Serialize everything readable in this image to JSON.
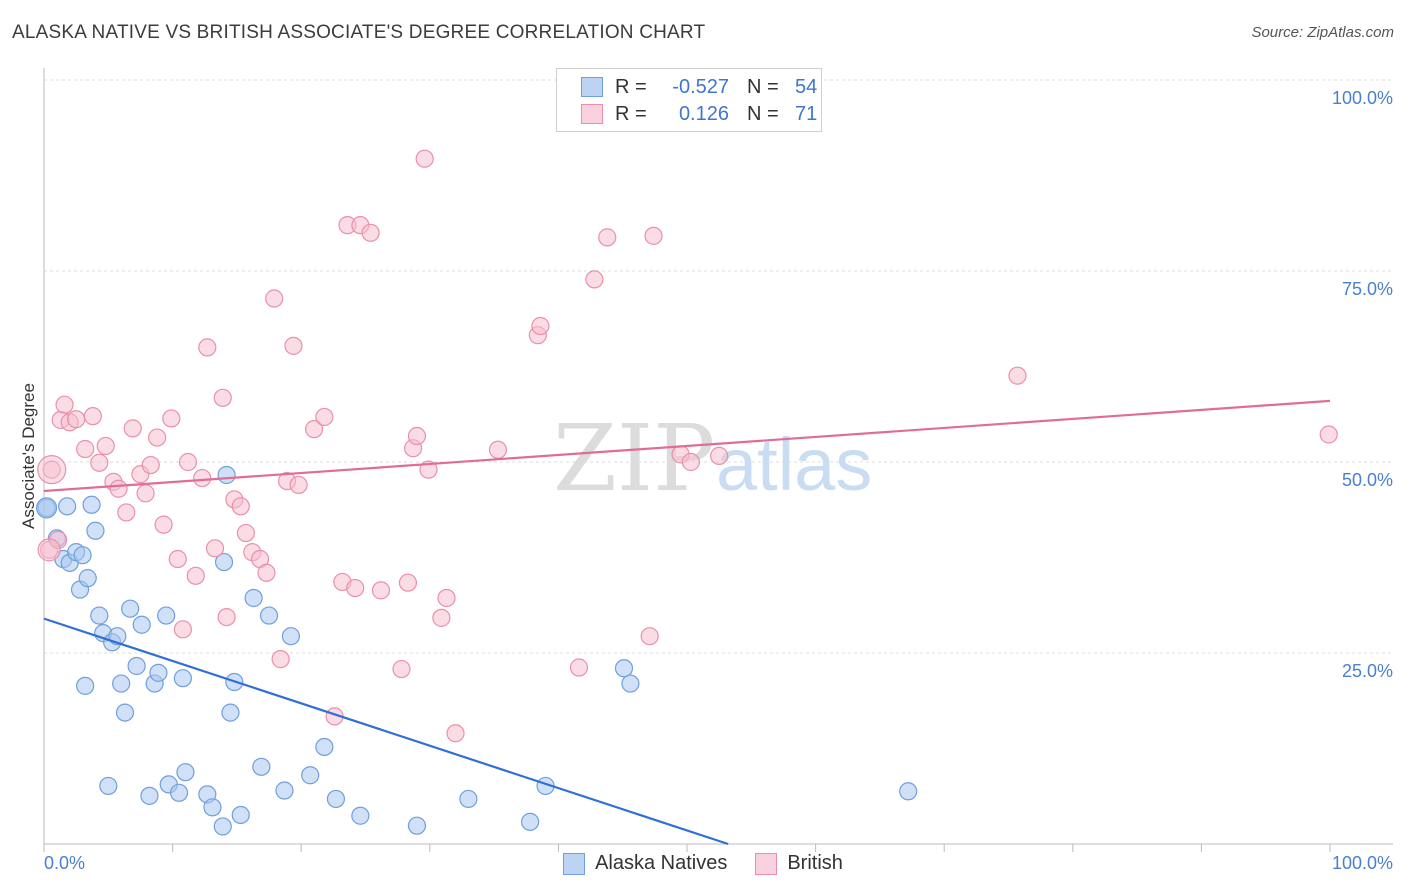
{
  "title": "ALASKA NATIVE VS BRITISH ASSOCIATE'S DEGREE CORRELATION CHART",
  "source": "Source: ZipAtlas.com",
  "watermark": {
    "zip": "ZIP",
    "atlas": "atlas"
  },
  "legend": {
    "r_label": "R =",
    "n_label": "N =",
    "rows": [
      {
        "r": "-0.527",
        "n": "54"
      },
      {
        "r": "0.126",
        "n": "71"
      }
    ]
  },
  "chart_data": {
    "type": "scatter",
    "title": "ALASKA NATIVE VS BRITISH ASSOCIATE'S DEGREE CORRELATION CHART",
    "xlabel": "",
    "ylabel": "Associate's Degree",
    "xlim": [
      0,
      100
    ],
    "ylim": [
      0,
      100
    ],
    "x_tick_labels": [
      "0.0%",
      "100.0%"
    ],
    "y_tick_labels": [
      "100.0%",
      "75.0%",
      "50.0%",
      "25.0%"
    ],
    "y_tick_values": [
      100,
      75,
      50,
      25
    ],
    "colors": {
      "alaska": "#a9c6ef",
      "alaska_edge": "#6f9fdd",
      "alaska_line": "#2f6fd6",
      "british": "#f6bfd0",
      "british_edge": "#eb8fac",
      "british_line": "#e06d97"
    },
    "series": [
      {
        "name": "Alaska Natives",
        "r": -0.527,
        "n": 54,
        "trend": {
          "x0": 0,
          "y0": 29.5,
          "x1": 53.2,
          "y1": 0
        },
        "points": [
          [
            0.2,
            44.0
          ],
          [
            1.0,
            40.0
          ],
          [
            1.5,
            37.3
          ],
          [
            2.0,
            36.8
          ],
          [
            1.8,
            44.2
          ],
          [
            2.5,
            38.2
          ],
          [
            2.8,
            33.3
          ],
          [
            3.0,
            37.8
          ],
          [
            3.4,
            34.8
          ],
          [
            3.7,
            44.4
          ],
          [
            4.0,
            41.0
          ],
          [
            4.3,
            29.9
          ],
          [
            4.6,
            27.6
          ],
          [
            5.0,
            7.6
          ],
          [
            5.3,
            26.4
          ],
          [
            5.7,
            27.2
          ],
          [
            6.0,
            21.0
          ],
          [
            6.3,
            17.2
          ],
          [
            6.7,
            30.8
          ],
          [
            7.2,
            23.3
          ],
          [
            7.6,
            28.7
          ],
          [
            8.2,
            6.3
          ],
          [
            8.6,
            21.0
          ],
          [
            8.9,
            22.4
          ],
          [
            9.5,
            29.9
          ],
          [
            9.7,
            7.8
          ],
          [
            10.5,
            6.7
          ],
          [
            10.8,
            21.7
          ],
          [
            11.0,
            9.4
          ],
          [
            12.7,
            6.5
          ],
          [
            13.1,
            4.8
          ],
          [
            13.9,
            2.3
          ],
          [
            14.0,
            36.9
          ],
          [
            14.2,
            48.3
          ],
          [
            14.5,
            17.2
          ],
          [
            14.8,
            21.2
          ],
          [
            15.3,
            3.8
          ],
          [
            16.3,
            32.2
          ],
          [
            16.9,
            10.1
          ],
          [
            17.5,
            29.9
          ],
          [
            18.7,
            7.0
          ],
          [
            19.2,
            27.2
          ],
          [
            20.7,
            9.0
          ],
          [
            21.8,
            12.7
          ],
          [
            22.7,
            5.9
          ],
          [
            24.6,
            3.7
          ],
          [
            29.0,
            2.4
          ],
          [
            33.0,
            5.9
          ],
          [
            37.8,
            2.9
          ],
          [
            39.0,
            7.6
          ],
          [
            45.1,
            23.0
          ],
          [
            45.6,
            21.0
          ],
          [
            67.2,
            6.9
          ],
          [
            3.2,
            20.7
          ]
        ]
      },
      {
        "name": "British",
        "r": 0.126,
        "n": 71,
        "trend": {
          "x0": 0,
          "y0": 46.2,
          "x1": 100,
          "y1": 58.0
        },
        "points": [
          [
            0.4,
            38.5
          ],
          [
            0.6,
            49.0
          ],
          [
            1.1,
            39.8
          ],
          [
            1.3,
            55.5
          ],
          [
            1.6,
            57.5
          ],
          [
            2.0,
            55.2
          ],
          [
            2.5,
            55.6
          ],
          [
            3.2,
            51.7
          ],
          [
            3.8,
            56.0
          ],
          [
            4.3,
            49.9
          ],
          [
            4.8,
            52.1
          ],
          [
            5.4,
            47.4
          ],
          [
            5.8,
            46.5
          ],
          [
            6.4,
            43.4
          ],
          [
            6.9,
            54.4
          ],
          [
            7.5,
            48.4
          ],
          [
            7.9,
            45.9
          ],
          [
            8.3,
            49.6
          ],
          [
            8.8,
            53.2
          ],
          [
            9.3,
            41.8
          ],
          [
            9.9,
            55.7
          ],
          [
            10.4,
            37.3
          ],
          [
            10.8,
            28.1
          ],
          [
            11.2,
            50.0
          ],
          [
            11.8,
            35.1
          ],
          [
            12.3,
            47.9
          ],
          [
            12.7,
            65.0
          ],
          [
            13.3,
            38.7
          ],
          [
            13.9,
            58.4
          ],
          [
            14.2,
            29.7
          ],
          [
            14.8,
            45.1
          ],
          [
            15.3,
            44.2
          ],
          [
            15.7,
            40.7
          ],
          [
            16.2,
            38.2
          ],
          [
            16.8,
            37.3
          ],
          [
            17.3,
            35.5
          ],
          [
            17.9,
            71.4
          ],
          [
            18.4,
            24.2
          ],
          [
            18.9,
            47.5
          ],
          [
            19.4,
            65.2
          ],
          [
            19.8,
            47.0
          ],
          [
            21.0,
            54.3
          ],
          [
            21.8,
            55.9
          ],
          [
            22.6,
            16.7
          ],
          [
            23.2,
            34.3
          ],
          [
            23.6,
            81.0
          ],
          [
            24.2,
            33.5
          ],
          [
            24.6,
            81.0
          ],
          [
            25.4,
            80.0
          ],
          [
            26.2,
            33.2
          ],
          [
            27.8,
            22.9
          ],
          [
            28.3,
            34.2
          ],
          [
            28.7,
            51.8
          ],
          [
            29.0,
            53.4
          ],
          [
            29.6,
            89.7
          ],
          [
            29.9,
            49.0
          ],
          [
            30.9,
            29.6
          ],
          [
            31.3,
            32.2
          ],
          [
            32.0,
            14.5
          ],
          [
            35.3,
            51.6
          ],
          [
            38.4,
            66.6
          ],
          [
            38.6,
            67.8
          ],
          [
            41.6,
            23.1
          ],
          [
            42.8,
            73.9
          ],
          [
            43.8,
            79.4
          ],
          [
            47.1,
            27.2
          ],
          [
            47.4,
            79.6
          ],
          [
            49.5,
            51.0
          ],
          [
            50.3,
            50.0
          ],
          [
            52.5,
            50.8
          ],
          [
            75.7,
            61.3
          ]
        ]
      }
    ],
    "extra_british_points": [
      [
        99.9,
        53.6
      ]
    ]
  }
}
